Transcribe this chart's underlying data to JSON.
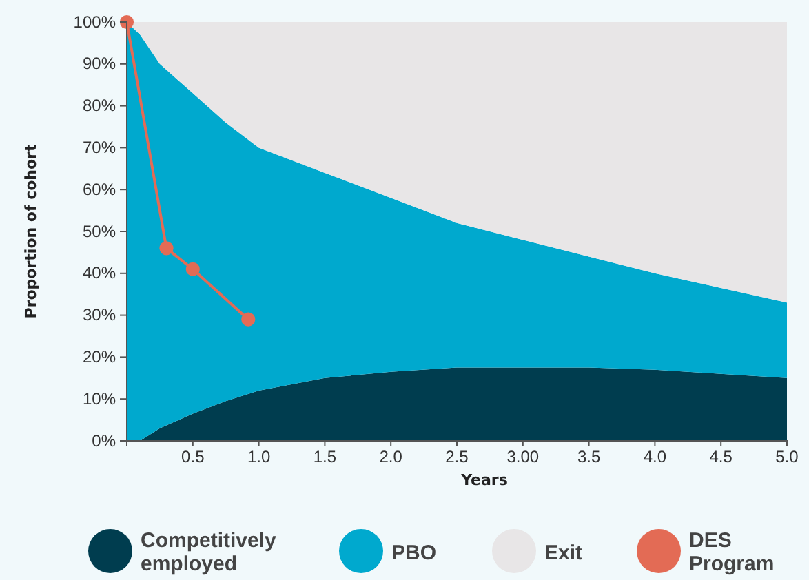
{
  "chart_data": {
    "type": "area",
    "stacked": true,
    "xlabel": "Years",
    "ylabel": "Proportion of cohort",
    "x": [
      0,
      0.1,
      0.25,
      0.5,
      0.75,
      1.0,
      1.5,
      2.0,
      2.5,
      3.0,
      3.5,
      4.0,
      4.5,
      5.0
    ],
    "series": [
      {
        "name": "Competitively employed",
        "color": "#003d4f",
        "values": [
          0,
          0,
          3,
          6.5,
          9.5,
          12,
          15,
          16.5,
          17.5,
          17.5,
          17.5,
          17,
          16,
          15
        ]
      },
      {
        "name": "PBO",
        "color": "#00a9ce",
        "values": [
          100,
          97,
          87,
          76.5,
          66.5,
          58,
          49,
          41.5,
          34.5,
          30.5,
          26.5,
          23,
          20.5,
          18
        ]
      },
      {
        "name": "Exit",
        "color": "#e8e6e7",
        "values": [
          0,
          3,
          10,
          17,
          24,
          30,
          36,
          42,
          48,
          52,
          56,
          60,
          63.5,
          67
        ]
      },
      {
        "name": "DES Program",
        "type": "line",
        "marker": "circle",
        "color": "#e36b55",
        "x": [
          0,
          0.3,
          0.5,
          0.92
        ],
        "values": [
          100,
          46,
          41,
          29
        ]
      }
    ],
    "legend": "bottom",
    "xlim": [
      0,
      5
    ],
    "ylim": [
      0,
      100
    ],
    "xticks": [
      0.5,
      {
        "value": 1,
        "label": "1.0"
      },
      1.5,
      {
        "value": 2,
        "label": "2.0"
      },
      2.5,
      {
        "value": 3,
        "label": "3.00"
      },
      3.5,
      {
        "value": 4,
        "label": "4.0"
      },
      4.5,
      {
        "value": 5,
        "label": "5.0"
      }
    ],
    "yticks": [
      {
        "value": 0,
        "label": "0%"
      },
      {
        "value": 10,
        "label": "10%"
      },
      {
        "value": 20,
        "label": "20%"
      },
      {
        "value": 30,
        "label": "30%"
      },
      {
        "value": 40,
        "label": "40%"
      },
      {
        "value": 50,
        "label": "50%"
      },
      {
        "value": 60,
        "label": "60%"
      },
      {
        "value": 70,
        "label": "70%"
      },
      {
        "value": 80,
        "label": "80%"
      },
      {
        "value": 90,
        "label": "90%"
      },
      {
        "value": 100,
        "label": "100%"
      }
    ]
  }
}
